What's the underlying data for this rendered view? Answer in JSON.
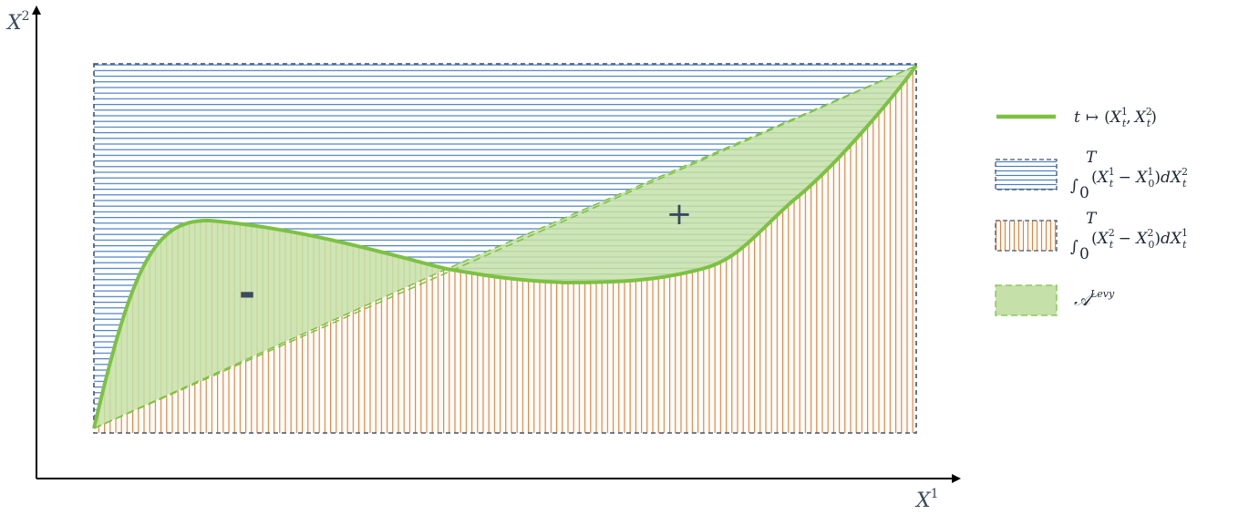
{
  "axes": {
    "x_label": "X",
    "x_label_sup": "1",
    "y_label": "X",
    "y_label_sup": "2"
  },
  "regions": {
    "minus_sign": "-",
    "plus_sign": "+"
  },
  "legend": {
    "path": {
      "t": "t",
      "mapsto": "↦",
      "open": "(",
      "x": "X",
      "sup1": "1",
      "sub1": "t",
      "comma": ",",
      "sup2": "2",
      "sub2": "t",
      "close": ")"
    },
    "integral_1": {
      "integral": "∫",
      "upper": "T",
      "lower": "0",
      "open": "(",
      "x": "X",
      "sup_a": "1",
      "sub_a": "t",
      "minus": " − ",
      "sup_b": "1",
      "sub_b": "0",
      "close": ")",
      "d": "d",
      "sup_c": "2",
      "sub_c": "t"
    },
    "integral_2": {
      "integral": "∫",
      "upper": "T",
      "lower": "0",
      "open": "(",
      "x": "X",
      "sup_a": "2",
      "sub_a": "t",
      "minus": " − ",
      "sup_b": "2",
      "sub_b": "0",
      "close": ")",
      "d": "d",
      "sup_c": "1",
      "sub_c": "t"
    },
    "levy": {
      "symbol": "𝒜",
      "sup": "Levy"
    }
  },
  "colors": {
    "axis": "#000000",
    "curve": "#7cc242",
    "green_fill": "#c5e0a8",
    "blue_hatch": "#4a7fc0",
    "orange_hatch": "#e8813a",
    "frame_dash": "#44546a",
    "sign": "#3b4a5e"
  }
}
